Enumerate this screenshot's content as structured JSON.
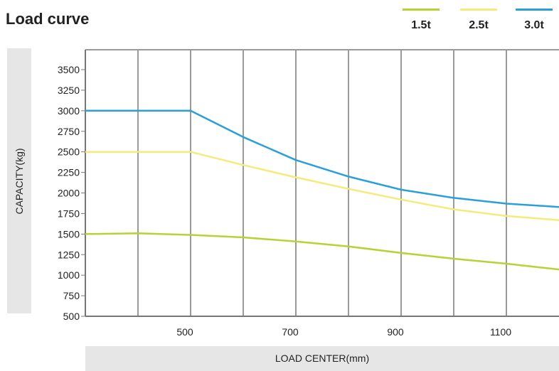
{
  "chart_data": {
    "type": "line",
    "title": "Load curve",
    "xlabel": "LOAD CENTER(mm)",
    "ylabel": "CAPACITY(kg)",
    "ylim": [
      500,
      3500
    ],
    "xlim": [
      300,
      1200
    ],
    "grid": true,
    "legend_position": "top-right",
    "x_ticks": [
      500,
      700,
      900,
      1100
    ],
    "y_ticks": [
      500,
      750,
      1000,
      1250,
      1500,
      1750,
      2000,
      2250,
      2500,
      2750,
      3000,
      3250,
      3500
    ],
    "series": [
      {
        "name": "1.5t",
        "color": "#b5d334",
        "x": [
          300,
          400,
          500,
          600,
          700,
          800,
          900,
          1000,
          1100,
          1200
        ],
        "values": [
          1500,
          1510,
          1490,
          1460,
          1410,
          1350,
          1270,
          1200,
          1140,
          1070
        ]
      },
      {
        "name": "2.5t",
        "color": "#f5ea7a",
        "x": [
          300,
          400,
          500,
          600,
          700,
          800,
          900,
          1000,
          1100,
          1200
        ],
        "values": [
          2500,
          2500,
          2500,
          2340,
          2190,
          2050,
          1920,
          1800,
          1720,
          1670
        ]
      },
      {
        "name": "3.0t",
        "color": "#2a9fd8",
        "x": [
          300,
          400,
          500,
          600,
          700,
          800,
          900,
          1000,
          1100,
          1200
        ],
        "values": [
          3000,
          3000,
          3000,
          2680,
          2400,
          2200,
          2040,
          1940,
          1870,
          1830
        ]
      }
    ]
  }
}
